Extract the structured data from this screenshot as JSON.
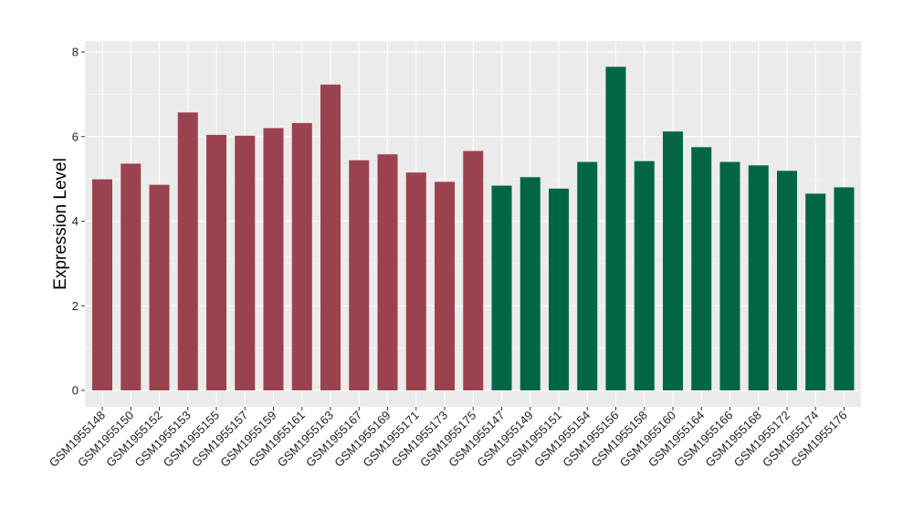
{
  "chart_data": {
    "type": "bar",
    "ylabel": "Expression Level",
    "xlabel": "",
    "title": "",
    "ylim": [
      0,
      8
    ],
    "yticks": [
      0,
      2,
      4,
      6,
      8
    ],
    "grid": true,
    "legend": "none",
    "categories": [
      "GSM1955148",
      "GSM1955150",
      "GSM1955152",
      "GSM1955153",
      "GSM1955155",
      "GSM1955157",
      "GSM1955159",
      "GSM1955161",
      "GSM1955163",
      "GSM1955167",
      "GSM1955169",
      "GSM1955171",
      "GSM1955173",
      "GSM1955175",
      "GSM1955147",
      "GSM1955149",
      "GSM1955151",
      "GSM1955154",
      "GSM1955156",
      "GSM1955158",
      "GSM1955160",
      "GSM1955164",
      "GSM1955166",
      "GSM1955168",
      "GSM1955172",
      "GSM1955174",
      "GSM1955176"
    ],
    "values": [
      4.99,
      5.36,
      4.86,
      6.57,
      6.04,
      6.02,
      6.2,
      6.32,
      7.23,
      5.44,
      5.58,
      5.15,
      4.93,
      5.66,
      4.84,
      5.04,
      4.77,
      5.4,
      7.65,
      5.42,
      6.12,
      5.75,
      5.4,
      5.32,
      5.19,
      4.65,
      4.8
    ],
    "bar_colors": [
      "#9b4251",
      "#9b4251",
      "#9b4251",
      "#9b4251",
      "#9b4251",
      "#9b4251",
      "#9b4251",
      "#9b4251",
      "#9b4251",
      "#9b4251",
      "#9b4251",
      "#9b4251",
      "#9b4251",
      "#9b4251",
      "#006646",
      "#006646",
      "#006646",
      "#006646",
      "#006646",
      "#006646",
      "#006646",
      "#006646",
      "#006646",
      "#006646",
      "#006646",
      "#006646",
      "#006646"
    ],
    "panel_background": "#ebebeb",
    "gridline_color": "#ffffff"
  }
}
